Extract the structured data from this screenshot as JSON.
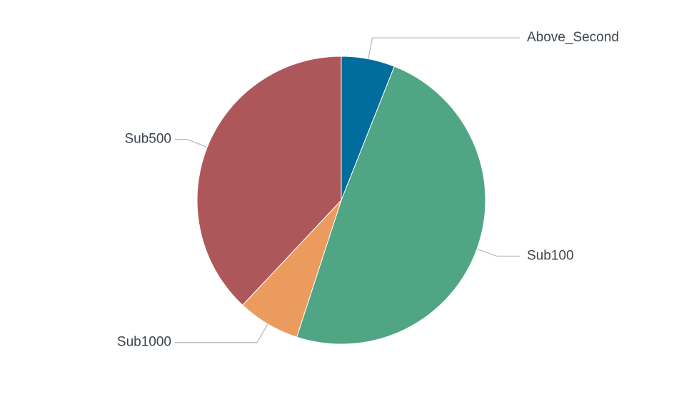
{
  "chart_data": {
    "type": "pie",
    "categories": [
      "Above_Second",
      "Sub100",
      "Sub1000",
      "Sub500"
    ],
    "values": [
      6,
      49,
      7,
      38
    ],
    "colors": [
      "#006d9c",
      "#4fa584",
      "#ec9b5e",
      "#ae575a"
    ]
  }
}
